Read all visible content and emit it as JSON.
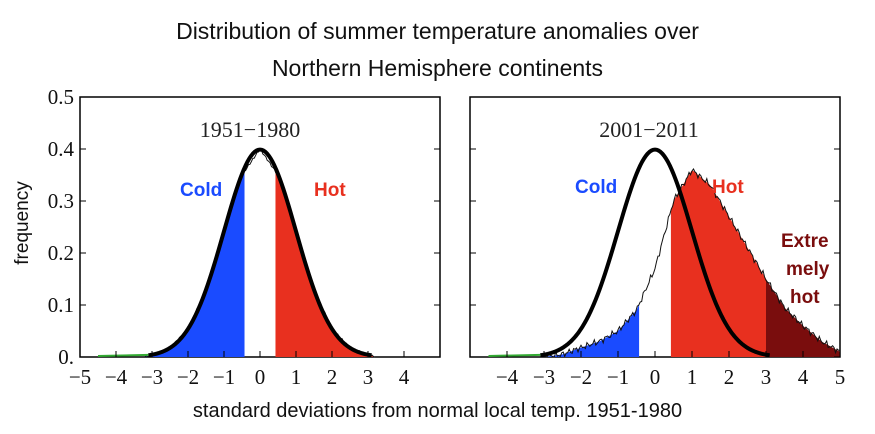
{
  "title_line1": "Distribution of summer temperature anomalies over",
  "title_line2": "Northern Hemisphere continents",
  "ylabel": "frequency",
  "xlabel": "standard deviations from normal local temp. 1951-1980",
  "colors": {
    "cold": "#1a4bff",
    "hot": "#e8301f",
    "extreme": "#7a0d0d",
    "normal_curve": "#000000",
    "green_edge": "#33aa33"
  },
  "chart_data": [
    {
      "type": "area",
      "title": "1951−1980",
      "ylim": [
        0,
        0.5
      ],
      "xlim": [
        -5,
        5
      ],
      "x_ticks": [
        -5,
        -4,
        -3,
        -2,
        -1,
        0,
        1,
        2,
        3,
        4
      ],
      "x_tick_labels": [
        "−5",
        "−4",
        "−3",
        "−2",
        "−1",
        "0",
        "1",
        "2",
        "3",
        "4"
      ],
      "y_ticks": [
        0,
        0.1,
        0.2,
        0.3,
        0.4,
        0.5
      ],
      "y_tick_labels": [
        "0.",
        "0.1",
        "0.2",
        "0.3",
        "0.4",
        "0.5"
      ],
      "reference_curve": "standard normal, peak 0.40 at 0",
      "thresholds": {
        "cold_max": -0.43,
        "hot_min": 0.43
      },
      "regions": [
        {
          "label": "Cold",
          "range": [
            -5,
            -0.43
          ]
        },
        {
          "label": "Hot",
          "range": [
            0.43,
            5
          ]
        }
      ],
      "x": [
        -3.2,
        -3.0,
        -2.5,
        -2.0,
        -1.5,
        -1.0,
        -0.5,
        0.0,
        0.5,
        1.0,
        1.5,
        2.0,
        2.5,
        3.0,
        3.2
      ],
      "y": [
        0.0,
        0.004,
        0.017,
        0.054,
        0.13,
        0.24,
        0.35,
        0.4,
        0.35,
        0.24,
        0.13,
        0.054,
        0.017,
        0.004,
        0.0
      ]
    },
    {
      "type": "area",
      "title": "2001−2011",
      "ylim": [
        0,
        0.5
      ],
      "xlim": [
        -5,
        5
      ],
      "x_ticks": [
        -4,
        -3,
        -2,
        -1,
        0,
        1,
        2,
        3,
        4,
        5
      ],
      "x_tick_labels": [
        "−4",
        "−3",
        "−2",
        "−1",
        "0",
        "1",
        "2",
        "3",
        "4",
        "5"
      ],
      "reference_curve": "standard normal, peak 0.40 at 0",
      "thresholds": {
        "cold_max": -0.43,
        "hot_min": 0.43,
        "extreme_min": 3.0
      },
      "regions": [
        {
          "label": "Cold",
          "range": [
            -5,
            -0.43
          ]
        },
        {
          "label": "Hot",
          "range": [
            0.43,
            3
          ]
        },
        {
          "label": "Extremely hot",
          "range": [
            3,
            5
          ]
        }
      ],
      "x": [
        -3.0,
        -2.5,
        -2.0,
        -1.5,
        -1.0,
        -0.5,
        0.0,
        0.5,
        1.0,
        1.5,
        2.0,
        2.5,
        3.0,
        3.5,
        4.0,
        4.5,
        5.0
      ],
      "y": [
        0.0,
        0.005,
        0.018,
        0.03,
        0.05,
        0.09,
        0.17,
        0.3,
        0.36,
        0.33,
        0.27,
        0.21,
        0.15,
        0.095,
        0.06,
        0.03,
        0.01
      ]
    }
  ],
  "labels": {
    "left_cold": "Cold",
    "left_hot": "Hot",
    "right_cold": "Cold",
    "right_hot": "Hot",
    "right_extreme_1": "Extre",
    "right_extreme_2": "mely",
    "right_extreme_3": "hot"
  }
}
